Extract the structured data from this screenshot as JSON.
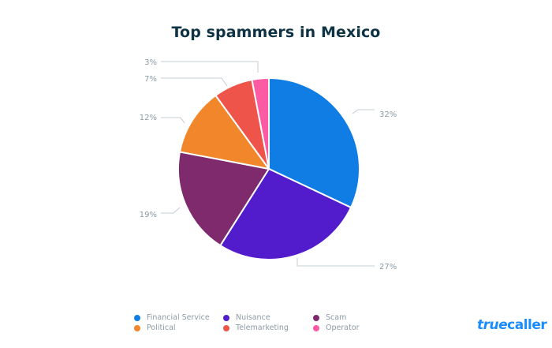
{
  "title": "Top spammers in Mexico",
  "brand": {
    "part1": "true",
    "part2": "caller",
    "color": "#1a8cff"
  },
  "chart_data": {
    "type": "pie",
    "title": "Top spammers in Mexico",
    "categories": [
      "Financial Service",
      "Nuisance",
      "Scam",
      "Political",
      "Telemarketing",
      "Operator"
    ],
    "values": [
      32,
      27,
      19,
      12,
      7,
      3
    ],
    "labels": [
      "32%",
      "27%",
      "19%",
      "12%",
      "7%",
      "3%"
    ],
    "colors": [
      "#0f7de3",
      "#521ccc",
      "#7e2a6d",
      "#f2862b",
      "#ef544b",
      "#fc5aa3"
    ],
    "start_angle": "12 o'clock",
    "direction": "clockwise",
    "legend_position": "bottom"
  },
  "legend": [
    {
      "label": "Financial Service",
      "color": "#0f7de3"
    },
    {
      "label": "Nuisance",
      "color": "#521ccc"
    },
    {
      "label": "Scam",
      "color": "#7e2a6d"
    },
    {
      "label": "Political",
      "color": "#f2862b"
    },
    {
      "label": "Telemarketing",
      "color": "#ef544b"
    },
    {
      "label": "Operator",
      "color": "#fc5aa3"
    }
  ]
}
